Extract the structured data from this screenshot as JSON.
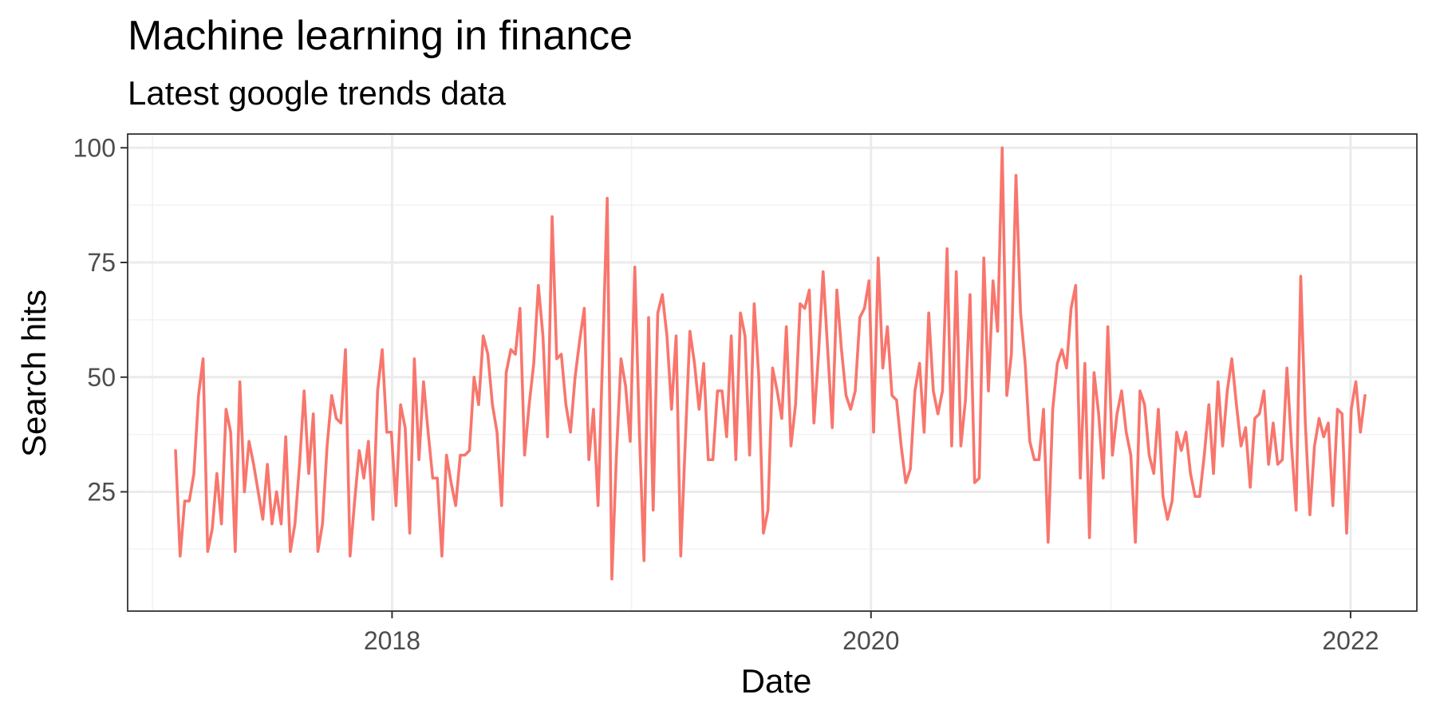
{
  "chart_data": {
    "type": "line",
    "title": "Machine learning in finance",
    "subtitle": "Latest google trends data",
    "xlabel": "Date",
    "ylabel": "Search hits",
    "x_start": "2017-02-05",
    "x_step": "weekly",
    "xlim": [
      "2016-11-24",
      "2022-04-12"
    ],
    "ylim": [
      -1,
      103
    ],
    "x_ticks": [
      {
        "date": "2018-01-01",
        "label": "2018"
      },
      {
        "date": "2020-01-01",
        "label": "2020"
      },
      {
        "date": "2022-01-01",
        "label": "2022"
      }
    ],
    "x_minor_ticks": [
      "2017-01-01",
      "2019-01-01",
      "2021-01-01"
    ],
    "y_ticks": [
      25,
      50,
      75,
      100
    ],
    "y_minor_ticks": [
      12.5,
      37.5,
      62.5,
      87.5
    ],
    "grid": true,
    "line_color": "#f8766d",
    "series": [
      {
        "values": [
          34,
          11,
          23,
          23,
          29,
          46,
          54,
          12,
          17,
          29,
          18,
          43,
          38,
          12,
          49,
          25,
          36,
          31,
          25,
          19,
          31,
          18,
          25,
          18,
          37,
          12,
          18,
          31,
          47,
          29,
          42,
          12,
          18,
          35,
          46,
          41,
          40,
          56,
          11,
          23,
          34,
          28,
          36,
          19,
          47,
          56,
          38,
          38,
          22,
          44,
          39,
          16,
          54,
          32,
          49,
          38,
          28,
          28,
          11,
          33,
          27,
          22,
          33,
          33,
          34,
          50,
          44,
          59,
          55,
          44,
          38,
          22,
          51,
          56,
          55,
          65,
          33,
          44,
          53,
          70,
          59,
          37,
          85,
          54,
          55,
          44,
          38,
          50,
          58,
          65,
          32,
          43,
          22,
          55,
          89,
          6,
          33,
          54,
          48,
          36,
          74,
          38,
          10,
          63,
          21,
          64,
          68,
          59,
          43,
          59,
          11,
          36,
          60,
          53,
          43,
          53,
          32,
          32,
          47,
          47,
          37,
          59,
          32,
          64,
          59,
          33,
          66,
          50,
          16,
          21,
          52,
          47,
          41,
          61,
          35,
          44,
          66,
          65,
          69,
          40,
          55,
          73,
          56,
          39,
          69,
          56,
          46,
          43,
          47,
          63,
          65,
          71,
          38,
          76,
          52,
          61,
          46,
          45,
          35,
          27,
          30,
          47,
          53,
          38,
          64,
          47,
          42,
          47,
          78,
          35,
          73,
          35,
          45,
          68,
          27,
          28,
          76,
          47,
          71,
          60,
          100,
          46,
          55,
          94,
          64,
          53,
          36,
          32,
          32,
          43,
          14,
          43,
          53,
          56,
          52,
          65,
          70,
          28,
          53,
          15,
          51,
          42,
          28,
          61,
          33,
          42,
          47,
          38,
          33,
          14,
          47,
          44,
          33,
          29,
          43,
          24,
          19,
          23,
          38,
          34,
          38,
          29,
          24,
          24,
          33,
          44,
          29,
          49,
          35,
          47,
          54,
          44,
          35,
          39,
          26,
          41,
          42,
          47,
          31,
          40,
          31,
          32,
          52,
          35,
          21,
          72,
          40,
          20,
          35,
          41,
          37,
          40,
          22,
          43,
          42,
          16,
          43,
          49,
          38,
          46
        ]
      }
    ]
  }
}
